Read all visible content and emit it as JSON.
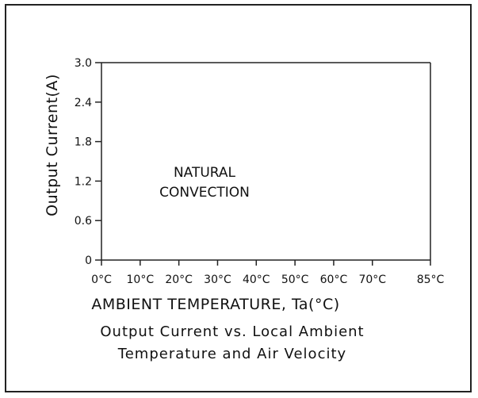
{
  "chart_data": {
    "type": "line",
    "title": "",
    "xlabel": "AMBIENT TEMPERATURE, Ta(°C)",
    "ylabel": "Output Current(A)",
    "x_categories": [
      "0°C",
      "10°C",
      "20°C",
      "30°C",
      "40°C",
      "50°C",
      "60°C",
      "70°C",
      "85°C"
    ],
    "x_values": [
      0,
      10,
      20,
      30,
      40,
      50,
      60,
      70,
      85
    ],
    "xlim": [
      0,
      85
    ],
    "y_ticks": [
      0,
      0.6,
      1.2,
      1.8,
      2.4,
      3.0
    ],
    "y_tick_labels": [
      "0",
      "0.6",
      "1.2",
      "1.8",
      "2.4",
      "3.0"
    ],
    "ylim": [
      0,
      3.0
    ],
    "annotation_lines": [
      "NATURAL",
      "CONVECTION"
    ],
    "series": [],
    "grid": false
  },
  "caption": {
    "line1": "Output Current vs. Local Ambient",
    "line2": "Temperature and Air Velocity"
  },
  "colors": {
    "axis": "#222222",
    "text": "#111111"
  }
}
